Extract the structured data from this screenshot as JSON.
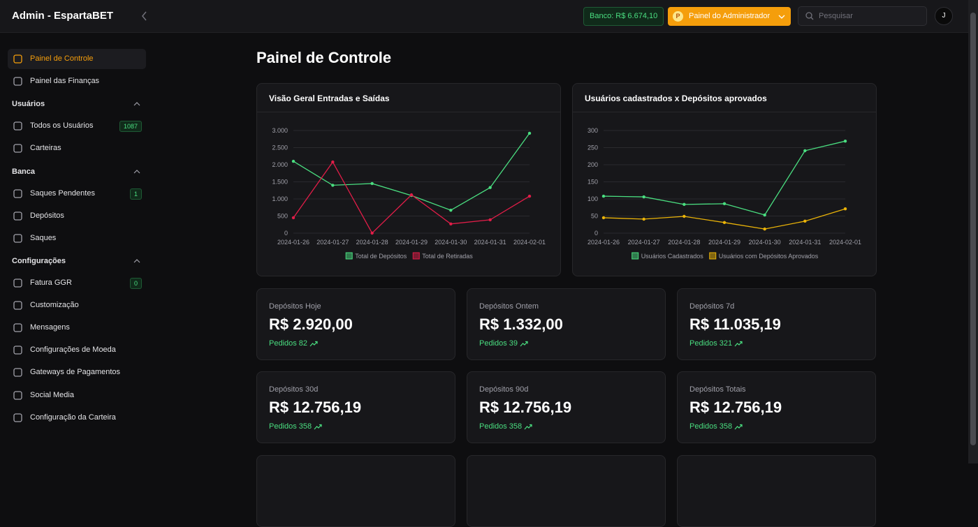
{
  "header": {
    "brand": "Admin - EspartaBET",
    "banco": "Banco: R$ 6.674,10",
    "admin_button": "Painel do Administrador",
    "search_placeholder": "Pesquisar",
    "avatar": "J"
  },
  "sidebar": {
    "items": [
      {
        "label": "Painel de Controle"
      },
      {
        "label": "Painel das Finanças"
      },
      {
        "section": "Usuários"
      },
      {
        "label": "Todos os Usuários",
        "badge": "1087"
      },
      {
        "label": "Carteiras"
      },
      {
        "section": "Banca"
      },
      {
        "label": "Saques Pendentes",
        "badge": "1"
      },
      {
        "label": "Depósitos"
      },
      {
        "label": "Saques"
      },
      {
        "section": "Configurações"
      },
      {
        "label": "Fatura GGR",
        "badge": "0"
      },
      {
        "label": "Customização"
      },
      {
        "label": "Mensagens"
      },
      {
        "label": "Configurações de Moeda"
      },
      {
        "label": "Gateways de Pagamentos"
      },
      {
        "label": "Social Media"
      },
      {
        "label": "Configuração da Carteira"
      }
    ]
  },
  "page_title": "Painel de Controle",
  "charts": [
    {
      "type": "line",
      "title": "Visão Geral Entradas e Saídas",
      "categories": [
        "2024-01-26",
        "2024-01-27",
        "2024-01-28",
        "2024-01-29",
        "2024-01-30",
        "2024-01-31",
        "2024-02-01"
      ],
      "series": [
        {
          "name": "Total de Depósitos",
          "color": "#4ade80",
          "values": [
            2100,
            1400,
            1450,
            1100,
            670,
            1332,
            2920
          ]
        },
        {
          "name": "Total de Retiradas",
          "color": "#e11d48",
          "values": [
            450,
            2080,
            0,
            1120,
            270,
            390,
            1080
          ]
        }
      ],
      "ylim": [
        0,
        3000
      ],
      "yticks": [
        0,
        500,
        {
          "value": 1000,
          "label": "1.000"
        },
        {
          "value": 1500,
          "label": "1.500"
        },
        {
          "value": 2000,
          "label": "2.000"
        },
        {
          "value": 2500,
          "label": "2.500"
        },
        {
          "value": 3000,
          "label": "3.000"
        }
      ],
      "grid": true
    },
    {
      "type": "line",
      "title": "Usuários cadastrados x Depósitos aprovados",
      "categories": [
        "2024-01-26",
        "2024-01-27",
        "2024-01-28",
        "2024-01-29",
        "2024-01-30",
        "2024-01-31",
        "2024-02-01"
      ],
      "series": [
        {
          "name": "Usuários Cadastrados",
          "color": "#4ade80",
          "values": [
            108,
            106,
            84,
            86,
            53,
            241,
            269
          ]
        },
        {
          "name": "Usuários com Depósitos Aprovados",
          "color": "#eab308",
          "values": [
            45,
            41,
            49,
            31,
            12,
            35,
            71
          ]
        }
      ],
      "ylim": [
        0,
        300
      ],
      "yticks": [
        0,
        50,
        100,
        150,
        200,
        250,
        300
      ],
      "grid": true
    }
  ],
  "cards": [
    {
      "label": "Depósitos Hoje",
      "value": "R$ 2.920,00",
      "orders": "Pedidos 82"
    },
    {
      "label": "Depósitos Ontem",
      "value": "R$ 1.332,00",
      "orders": "Pedidos 39"
    },
    {
      "label": "Depósitos 7d",
      "value": "R$ 11.035,19",
      "orders": "Pedidos 321"
    },
    {
      "label": "Depósitos 30d",
      "value": "R$ 12.756,19",
      "orders": "Pedidos 358"
    },
    {
      "label": "Depósitos 90d",
      "value": "R$ 12.756,19",
      "orders": "Pedidos 358"
    },
    {
      "label": "Depósitos Totais",
      "value": "R$ 12.756,19",
      "orders": "Pedidos 358"
    }
  ]
}
